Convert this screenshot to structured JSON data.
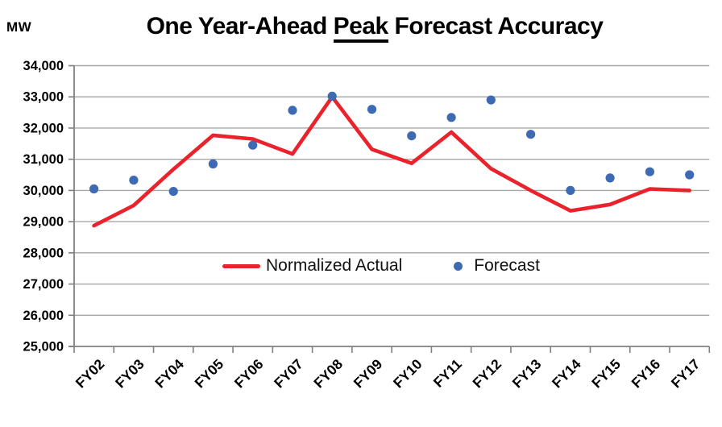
{
  "chart": {
    "unit_label": "MW",
    "title_prefix": "One Year-Ahead ",
    "title_underlined": "Peak",
    "title_suffix": " Forecast Accuracy",
    "legend": [
      {
        "label": "Normalized Actual",
        "color": "#e9222c",
        "type": "line"
      },
      {
        "label": "Forecast",
        "color": "#3d6ab2",
        "type": "dot"
      }
    ],
    "colors": {
      "actual_line": "#e9222c",
      "forecast_dot": "#3d6ab2",
      "gridline": "#a6a6a6",
      "axis": "#808080",
      "text": "#000000"
    }
  },
  "chart_data": {
    "type": "line",
    "title": "One Year-Ahead Peak Forecast Accuracy",
    "ylabel": "MW",
    "xlabel": "",
    "grid": true,
    "legend_position": "inside-center",
    "ylim": [
      25000,
      34000
    ],
    "ytick_step": 1000,
    "ytick_labels": [
      "34,000",
      "33,000",
      "32,000",
      "31,000",
      "30,000",
      "29,000",
      "28,000",
      "27,000",
      "26,000",
      "25,000"
    ],
    "categories": [
      "FY02",
      "FY03",
      "FY04",
      "FY05",
      "FY06",
      "FY07",
      "FY08",
      "FY09",
      "FY10",
      "FY11",
      "FY12",
      "FY13",
      "FY14",
      "FY15",
      "FY16",
      "FY17"
    ],
    "series": [
      {
        "name": "Normalized Actual",
        "render": "line",
        "color": "#e9222c",
        "values": [
          28870,
          29520,
          30680,
          31770,
          31650,
          31170,
          33000,
          31320,
          30870,
          31870,
          30700,
          30000,
          29350,
          29550,
          30050,
          30000
        ]
      },
      {
        "name": "Forecast",
        "render": "scatter",
        "color": "#3d6ab2",
        "values": [
          30050,
          30330,
          29970,
          30850,
          31450,
          32570,
          33020,
          32600,
          31750,
          32340,
          32900,
          31800,
          30000,
          30400,
          30600,
          30500
        ]
      }
    ]
  }
}
